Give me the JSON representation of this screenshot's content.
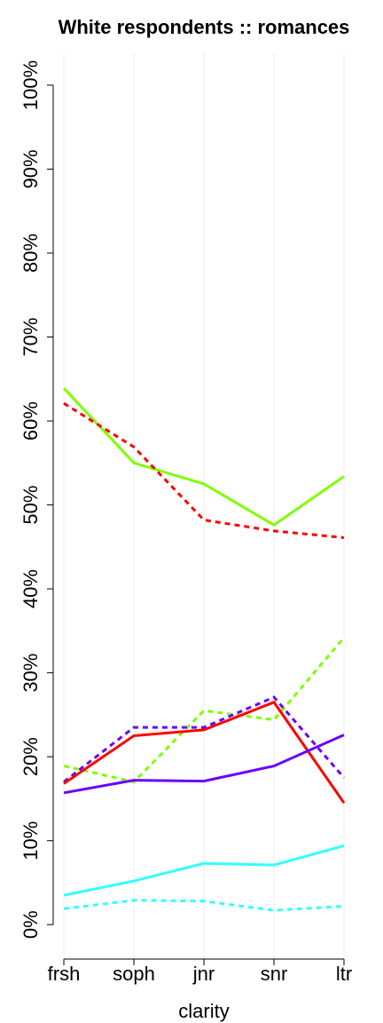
{
  "chart_data": {
    "type": "line",
    "title": "White respondents :: romances",
    "xlabel": "clarity",
    "categories": [
      "frsh",
      "soph",
      "jnr",
      "snr",
      "ltr"
    ],
    "series": [
      {
        "color": "#7fff00",
        "dashed": false,
        "values": [
          63.9,
          55.0,
          52.5,
          47.6,
          53.4
        ]
      },
      {
        "color": "#ff0000",
        "dashed": true,
        "values": [
          62.1,
          56.9,
          48.2,
          46.9,
          46.1
        ]
      },
      {
        "color": "#7fff00",
        "dashed": true,
        "values": [
          18.9,
          17.0,
          25.5,
          24.4,
          34.2
        ]
      },
      {
        "color": "#6a00ff",
        "dashed": true,
        "values": [
          17.0,
          23.5,
          23.5,
          27.1,
          17.5
        ]
      },
      {
        "color": "#ff0000",
        "dashed": false,
        "values": [
          16.8,
          22.5,
          23.2,
          26.5,
          14.5
        ]
      },
      {
        "color": "#6a00ff",
        "dashed": false,
        "values": [
          15.7,
          17.2,
          17.1,
          18.9,
          22.6
        ]
      },
      {
        "color": "#33ffff",
        "dashed": false,
        "values": [
          3.5,
          5.2,
          7.3,
          7.1,
          9.4
        ]
      },
      {
        "color": "#33ffff",
        "dashed": true,
        "values": [
          1.9,
          2.9,
          2.8,
          1.7,
          2.2
        ]
      }
    ],
    "ylim": [
      -4.1,
      103.8
    ],
    "yticks": [
      {
        "value": 0,
        "label": "0%"
      },
      {
        "value": 10,
        "label": "10%"
      },
      {
        "value": 20,
        "label": "20%"
      },
      {
        "value": 30,
        "label": "30%"
      },
      {
        "value": 40,
        "label": "40%"
      },
      {
        "value": 50,
        "label": "50%"
      },
      {
        "value": 60,
        "label": "60%"
      },
      {
        "value": 70,
        "label": "70%"
      },
      {
        "value": 80,
        "label": "80%"
      },
      {
        "value": 90,
        "label": "90%"
      },
      {
        "value": 100,
        "label": "100%"
      }
    ],
    "xgrid": true
  }
}
